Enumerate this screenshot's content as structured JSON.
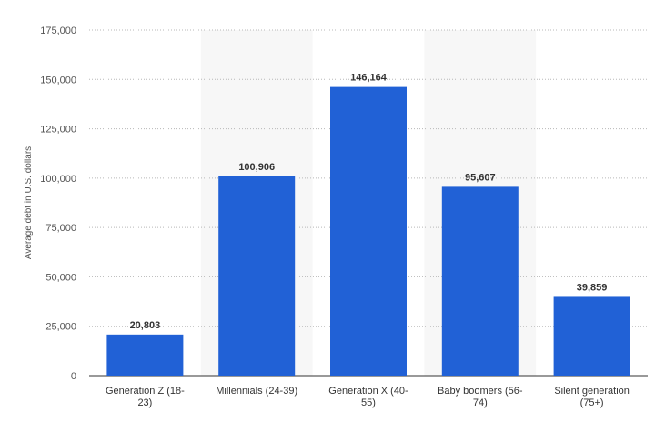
{
  "chart_data": {
    "type": "bar",
    "title": "",
    "xlabel": "",
    "ylabel": "Average debt in U.S. dollars",
    "ylim": [
      0,
      175000
    ],
    "yticks": [
      0,
      25000,
      50000,
      75000,
      100000,
      125000,
      150000,
      175000
    ],
    "ytick_labels": [
      "0",
      "25,000",
      "50,000",
      "75,000",
      "100,000",
      "125,000",
      "150,000",
      "175,000"
    ],
    "categories": [
      [
        "Generation Z (18-",
        "23)"
      ],
      [
        "Millennials (24-39)"
      ],
      [
        "Generation X (40-",
        "55)"
      ],
      [
        "Baby boomers (56-",
        "74)"
      ],
      [
        "Silent generation",
        "(75+)"
      ]
    ],
    "values": [
      20803,
      100906,
      146164,
      95607,
      39859
    ],
    "value_labels": [
      "20,803",
      "100,906",
      "146,164",
      "95,607",
      "39,859"
    ],
    "bar_color": "#2161d6",
    "alt_band_color": "#f7f7f7",
    "grid": true
  }
}
